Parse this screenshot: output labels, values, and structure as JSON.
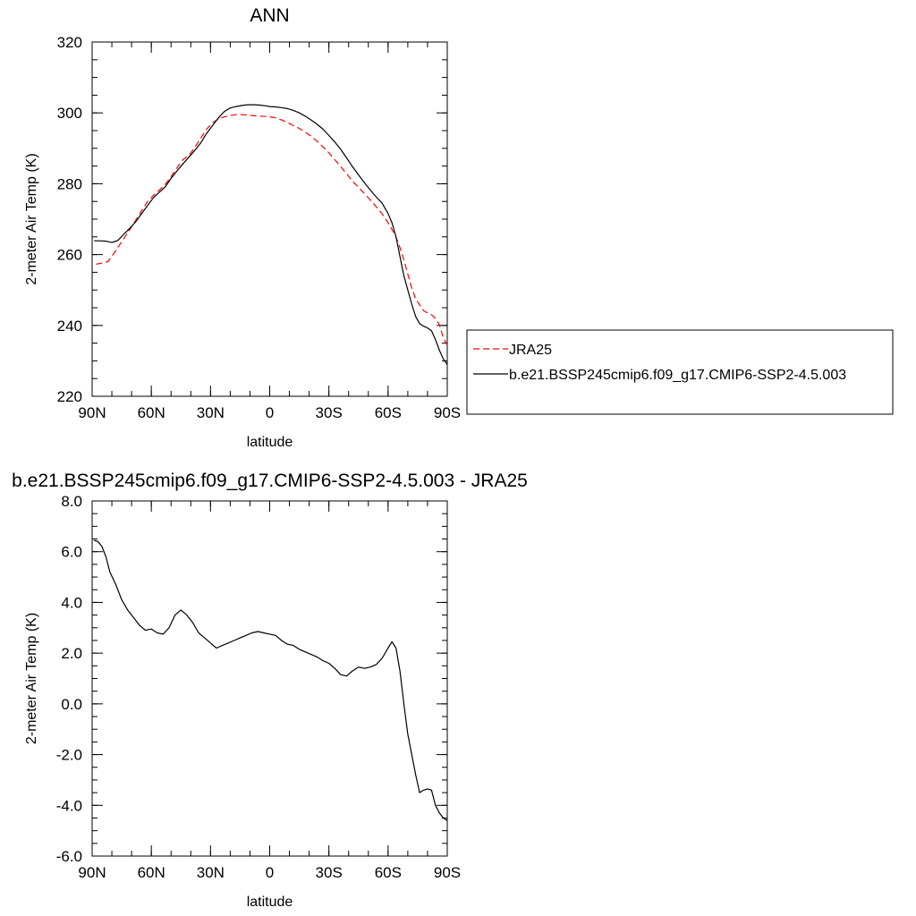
{
  "chart_data": [
    {
      "type": "line",
      "title": "ANN",
      "xlabel": "latitude",
      "ylabel": "2-meter Air Temp (K)",
      "xlim": [
        90,
        -90
      ],
      "ylim": [
        220,
        320
      ],
      "x_ticks": [
        {
          "value": 90,
          "label": "90N"
        },
        {
          "value": 60,
          "label": "60N"
        },
        {
          "value": 30,
          "label": "30N"
        },
        {
          "value": 0,
          "label": "0"
        },
        {
          "value": -30,
          "label": "30S"
        },
        {
          "value": -60,
          "label": "60S"
        },
        {
          "value": -90,
          "label": "90S"
        }
      ],
      "y_ticks": [
        {
          "value": 220,
          "label": "220"
        },
        {
          "value": 240,
          "label": "240"
        },
        {
          "value": 260,
          "label": "260"
        },
        {
          "value": 280,
          "label": "280"
        },
        {
          "value": 300,
          "label": "300"
        },
        {
          "value": 320,
          "label": "320"
        }
      ],
      "x_minor_step": 10,
      "y_minor_step": 5,
      "grid": false,
      "legend": {
        "placement": "right",
        "entries": [
          {
            "name": "JRA25",
            "style": "dashed",
            "color": "#ff0000"
          },
          {
            "name": "b.e21.BSSP245cmip6.f09_g17.CMIP6-SSP2-4.5.003",
            "style": "solid",
            "color": "#000000"
          }
        ]
      },
      "series": [
        {
          "name": "JRA25",
          "color": "#ff0000",
          "style": "dashed",
          "x": [
            88,
            85,
            82,
            80,
            77,
            74,
            71,
            68,
            65,
            62,
            59,
            56,
            53,
            50,
            47,
            44,
            41,
            38,
            35,
            32,
            29,
            26,
            23,
            20,
            17,
            14,
            11,
            8,
            5,
            2,
            0,
            -3,
            -6,
            -9,
            -12,
            -15,
            -18,
            -21,
            -24,
            -27,
            -30,
            -33,
            -36,
            -39,
            -42,
            -45,
            -48,
            -51,
            -54,
            -57,
            -60,
            -62,
            -64,
            -66,
            -68,
            -70,
            -72,
            -74,
            -76,
            -78,
            -80,
            -82,
            -84,
            -86,
            -88,
            -90
          ],
          "y": [
            257.3,
            257.6,
            258.0,
            259.5,
            262.0,
            264.5,
            267.0,
            269.6,
            272.3,
            274.9,
            276.7,
            278.2,
            279.8,
            282.0,
            284.5,
            286.8,
            288.0,
            290.2,
            292.8,
            295.4,
            297.2,
            298.3,
            298.9,
            299.3,
            299.5,
            299.5,
            299.4,
            299.2,
            299.1,
            299.0,
            298.9,
            298.6,
            298.0,
            297.3,
            296.4,
            295.6,
            294.6,
            293.4,
            292.0,
            290.4,
            288.7,
            286.8,
            284.8,
            282.8,
            280.7,
            279.0,
            277.2,
            275.4,
            273.5,
            271.5,
            269.0,
            267.1,
            264.9,
            262.0,
            258.5,
            254.5,
            250.5,
            247.5,
            245.8,
            244.2,
            243.5,
            243.0,
            242.0,
            240.2,
            236.5,
            234.5
          ]
        },
        {
          "name": "b.e21.BSSP245cmip6.f09_g17.CMIP6-SSP2-4.5.003",
          "color": "#000000",
          "style": "solid",
          "x": [
            89,
            86,
            83,
            80,
            77,
            74,
            71,
            68,
            65,
            62,
            59,
            56,
            53,
            50,
            47,
            44,
            41,
            38,
            35,
            32,
            29,
            26,
            23,
            20,
            17,
            14,
            11,
            8,
            5,
            2,
            0,
            -3,
            -6,
            -9,
            -12,
            -15,
            -18,
            -21,
            -24,
            -27,
            -30,
            -33,
            -36,
            -39,
            -42,
            -45,
            -48,
            -51,
            -54,
            -57,
            -60,
            -62,
            -64,
            -66,
            -68,
            -70,
            -72,
            -74,
            -76,
            -78,
            -80,
            -82,
            -84,
            -86,
            -88,
            -90
          ],
          "y": [
            263.9,
            263.9,
            263.8,
            263.4,
            264.0,
            265.7,
            267.4,
            269.2,
            271.5,
            273.8,
            276.0,
            277.6,
            279.1,
            281.5,
            283.6,
            285.6,
            287.5,
            289.4,
            291.5,
            294.2,
            296.4,
            298.6,
            300.4,
            301.4,
            301.8,
            302.1,
            302.3,
            302.3,
            302.2,
            302.0,
            301.8,
            301.7,
            301.5,
            301.2,
            300.7,
            300.0,
            299.1,
            298.0,
            296.8,
            295.4,
            293.6,
            291.8,
            289.7,
            287.3,
            284.8,
            282.5,
            280.3,
            278.2,
            276.3,
            274.5,
            271.6,
            269.0,
            265.0,
            259.5,
            254.0,
            250.0,
            246.0,
            242.5,
            240.5,
            239.8,
            239.3,
            238.5,
            236.0,
            233.0,
            230.5,
            229.0
          ]
        }
      ]
    },
    {
      "type": "line",
      "title": "b.e21.BSSP245cmip6.f09_g17.CMIP6-SSP2-4.5.003 - JRA25",
      "xlabel": "latitude",
      "ylabel": "2-meter Air Temp (K)",
      "xlim": [
        90,
        -90
      ],
      "ylim": [
        -6,
        8
      ],
      "x_ticks": [
        {
          "value": 90,
          "label": "90N"
        },
        {
          "value": 60,
          "label": "60N"
        },
        {
          "value": 30,
          "label": "30N"
        },
        {
          "value": 0,
          "label": "0"
        },
        {
          "value": -30,
          "label": "30S"
        },
        {
          "value": -60,
          "label": "60S"
        },
        {
          "value": -90,
          "label": "90S"
        }
      ],
      "y_ticks": [
        {
          "value": -6,
          "label": "-6.0"
        },
        {
          "value": -4,
          "label": "-4.0"
        },
        {
          "value": -2,
          "label": "-2.0"
        },
        {
          "value": 0,
          "label": "0.0"
        },
        {
          "value": 2,
          "label": "2.0"
        },
        {
          "value": 4,
          "label": "4.0"
        },
        {
          "value": 6,
          "label": "6.0"
        },
        {
          "value": 8,
          "label": "8.0"
        }
      ],
      "x_minor_step": 10,
      "y_minor_step": 0.5,
      "grid": false,
      "series": [
        {
          "name": "",
          "color": "#000000",
          "style": "solid",
          "x": [
            89,
            87,
            85,
            83,
            81,
            78,
            75,
            72,
            69,
            66,
            63,
            60,
            57,
            54,
            51,
            48,
            45,
            42,
            39,
            36,
            33,
            30,
            27,
            24,
            21,
            18,
            15,
            12,
            9,
            6,
            3,
            0,
            -3,
            -6,
            -9,
            -12,
            -15,
            -18,
            -21,
            -24,
            -27,
            -30,
            -33,
            -36,
            -39,
            -42,
            -45,
            -48,
            -51,
            -54,
            -57,
            -60,
            -62,
            -64,
            -66,
            -68,
            -70,
            -72,
            -74,
            -76,
            -78,
            -80,
            -82,
            -84,
            -86,
            -88,
            -90
          ],
          "y": [
            6.45,
            6.4,
            6.2,
            5.8,
            5.2,
            4.7,
            4.1,
            3.7,
            3.4,
            3.1,
            2.9,
            2.95,
            2.8,
            2.75,
            3.0,
            3.5,
            3.7,
            3.5,
            3.2,
            2.8,
            2.6,
            2.4,
            2.2,
            2.3,
            2.4,
            2.5,
            2.6,
            2.7,
            2.8,
            2.85,
            2.8,
            2.75,
            2.7,
            2.5,
            2.35,
            2.3,
            2.15,
            2.05,
            1.95,
            1.85,
            1.7,
            1.6,
            1.4,
            1.15,
            1.1,
            1.3,
            1.45,
            1.4,
            1.45,
            1.55,
            1.8,
            2.2,
            2.45,
            2.2,
            1.3,
            0.0,
            -1.2,
            -2.0,
            -2.8,
            -3.5,
            -3.4,
            -3.35,
            -3.4,
            -4.0,
            -4.3,
            -4.5,
            -4.6
          ]
        }
      ]
    }
  ]
}
